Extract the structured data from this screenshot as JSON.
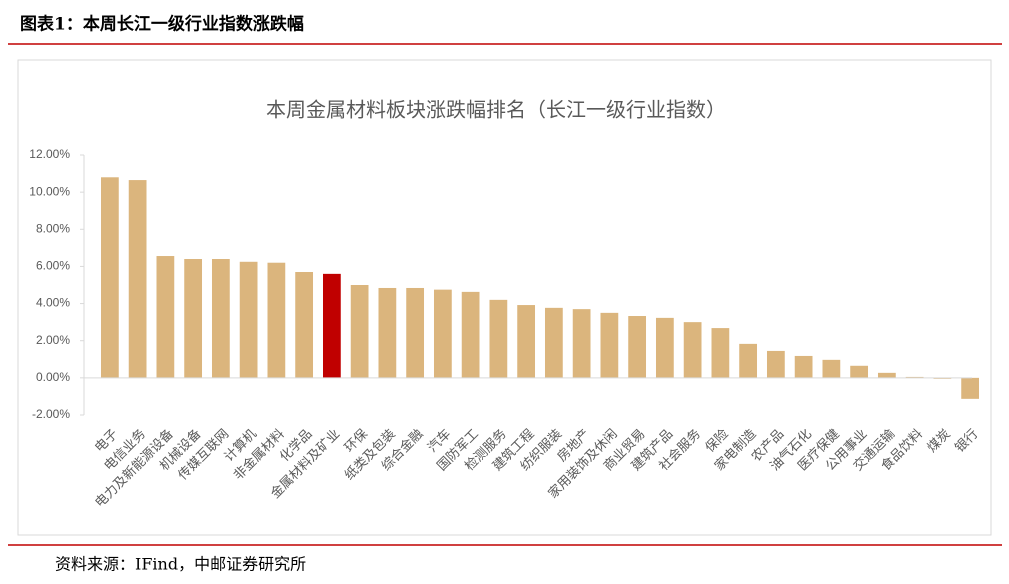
{
  "header": {
    "title": "图表1：本周长江一级行业指数涨跌幅"
  },
  "chart_data": {
    "type": "bar",
    "title": "本周金属材料板块涨跌幅排名（长江一级行业指数）",
    "categories": [
      "电子",
      "电信业务",
      "电力及新能源设备",
      "机械设备",
      "传媒互联网",
      "计算机",
      "非金属材料",
      "化学品",
      "金属材料及矿业",
      "环保",
      "纸类及包装",
      "综合金融",
      "汽车",
      "国防军工",
      "检测服务",
      "建筑工程",
      "纺织服装",
      "房地产",
      "家用装饰及休闲",
      "商业贸易",
      "建筑产品",
      "社会服务",
      "保险",
      "家电制造",
      "农产品",
      "油气石化",
      "医疗保健",
      "公用事业",
      "交通运输",
      "食品饮料",
      "煤炭",
      "银行"
    ],
    "values": [
      10.8,
      10.65,
      6.56,
      6.4,
      6.4,
      6.25,
      6.2,
      5.7,
      5.6,
      5.0,
      4.84,
      4.84,
      4.75,
      4.63,
      4.2,
      3.92,
      3.77,
      3.7,
      3.5,
      3.33,
      3.23,
      3.0,
      2.68,
      1.83,
      1.45,
      1.18,
      0.97,
      0.65,
      0.27,
      0.05,
      -0.05,
      -1.13
    ],
    "colors": [
      "#dbb57d",
      "#dbb57d",
      "#dbb57d",
      "#dbb57d",
      "#dbb57d",
      "#dbb57d",
      "#dbb57d",
      "#dbb57d",
      "#c00000",
      "#dbb57d",
      "#dbb57d",
      "#dbb57d",
      "#dbb57d",
      "#dbb57d",
      "#dbb57d",
      "#dbb57d",
      "#dbb57d",
      "#dbb57d",
      "#dbb57d",
      "#dbb57d",
      "#dbb57d",
      "#dbb57d",
      "#dbb57d",
      "#dbb57d",
      "#dbb57d",
      "#dbb57d",
      "#dbb57d",
      "#dbb57d",
      "#dbb57d",
      "#dbb57d",
      "#dbb57d",
      "#dbb57d"
    ],
    "ylim": [
      -2,
      12
    ],
    "yticks": [
      {
        "value": -2,
        "label": "-2.00%"
      },
      {
        "value": 0,
        "label": "0.00%"
      },
      {
        "value": 2,
        "label": "2.00%"
      },
      {
        "value": 4,
        "label": "4.00%"
      },
      {
        "value": 6,
        "label": "6.00%"
      },
      {
        "value": 8,
        "label": "8.00%"
      },
      {
        "value": 10,
        "label": "10.00%"
      },
      {
        "value": 12,
        "label": "12.00%"
      }
    ],
    "grid": false
  },
  "footer": {
    "source": "资料来源：IFind，中邮证券研究所"
  }
}
